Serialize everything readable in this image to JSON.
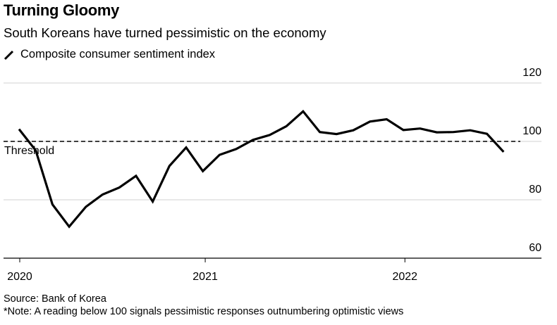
{
  "header": {
    "title": "Turning Gloomy",
    "subtitle": "South Koreans have turned pessimistic on the economy"
  },
  "footer": {
    "source": "Source: Bank of Korea",
    "note": "*Note: A reading below 100 signals pessimistic responses outnumbering optimistic views"
  },
  "chart_data": {
    "type": "line",
    "title": "Turning Gloomy",
    "subtitle": "South Koreans have turned pessimistic on the economy",
    "xlabel": "",
    "ylabel": "",
    "ylim": [
      60,
      120
    ],
    "yticks": [
      60,
      80,
      100,
      120
    ],
    "y_axis_side": "right",
    "grid": true,
    "legend_placement": "top-left",
    "x": [
      "2020-01",
      "2020-02",
      "2020-03",
      "2020-04",
      "2020-05",
      "2020-06",
      "2020-07",
      "2020-08",
      "2020-09",
      "2020-10",
      "2020-11",
      "2020-12",
      "2021-01",
      "2021-02",
      "2021-03",
      "2021-04",
      "2021-05",
      "2021-06",
      "2021-07",
      "2021-08",
      "2021-09",
      "2021-10",
      "2021-11",
      "2021-12",
      "2022-01",
      "2022-02",
      "2022-03",
      "2022-04",
      "2022-05",
      "2022-06"
    ],
    "xticks": [
      {
        "label": "2020",
        "index": 0
      },
      {
        "label": "2021",
        "index": 11.1
      },
      {
        "label": "2022",
        "index": 23.05
      }
    ],
    "series": [
      {
        "name": "Composite consumer sentiment index",
        "color": "#000000",
        "values": [
          104.2,
          96.9,
          78.4,
          70.8,
          77.6,
          81.8,
          84.2,
          88.2,
          79.4,
          91.6,
          97.9,
          89.8,
          95.4,
          97.4,
          100.5,
          102.2,
          105.2,
          110.3,
          103.2,
          102.5,
          103.8,
          106.8,
          107.6,
          103.9,
          104.4,
          103.1,
          103.2,
          103.8,
          102.6,
          96.4
        ]
      }
    ],
    "annotations": [
      {
        "type": "hline",
        "y": 100,
        "style": "dashed",
        "label": "Threshold"
      }
    ]
  }
}
